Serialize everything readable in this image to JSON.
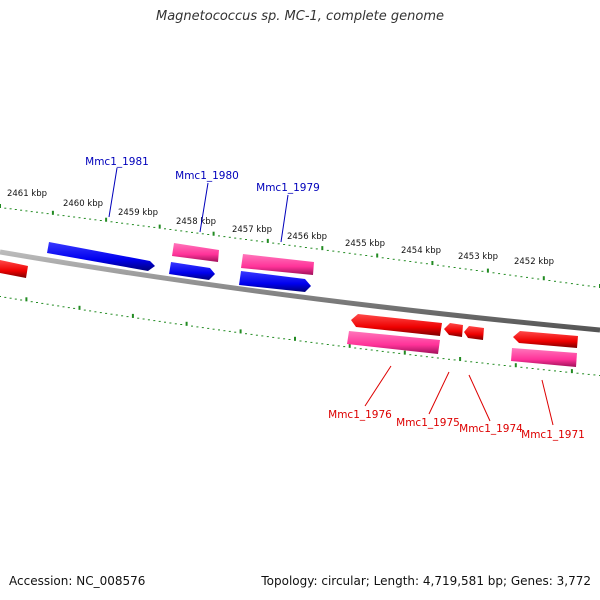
{
  "title": "Magnetococcus sp. MC-1, complete genome",
  "accession": "Accession: NC_008576",
  "stats": "Topology: circular; Length: 4,719,581 bp; Genes: 3,772",
  "colors": {
    "forward_gene": "#0000ee",
    "forward_label": "#0000bb",
    "reverse_gene": "#ee0000",
    "reverse_label": "#dd0000",
    "cds_pink": "#ff3399",
    "tick": "#228b22",
    "backbone": "#888888"
  },
  "scale": {
    "unit": "kbp",
    "ticks": [
      {
        "kbp": 2461,
        "label": "2461 kbp"
      },
      {
        "kbp": 2460,
        "label": "2460 kbp"
      },
      {
        "kbp": 2459,
        "label": "2459 kbp"
      },
      {
        "kbp": 2458,
        "label": "2458 kbp"
      },
      {
        "kbp": 2457,
        "label": "2457 kbp"
      },
      {
        "kbp": 2456,
        "label": "2456 kbp"
      },
      {
        "kbp": 2455,
        "label": "2455 kbp"
      },
      {
        "kbp": 2454,
        "label": "2454 kbp"
      },
      {
        "kbp": 2453,
        "label": "2453 kbp"
      },
      {
        "kbp": 2452,
        "label": "2452 kbp"
      }
    ]
  },
  "forward_genes": [
    {
      "id": "Mmc1_1981",
      "label": "Mmc1_1981"
    },
    {
      "id": "Mmc1_1980",
      "label": "Mmc1_1980"
    },
    {
      "id": "Mmc1_1979",
      "label": "Mmc1_1979"
    }
  ],
  "reverse_genes": [
    {
      "id": "Mmc1_1976",
      "label": "Mmc1_1976"
    },
    {
      "id": "Mmc1_1975",
      "label": "Mmc1_1975"
    },
    {
      "id": "Mmc1_1974",
      "label": "Mmc1_1974"
    },
    {
      "id": "Mmc1_1971",
      "label": "Mmc1_1971"
    }
  ]
}
